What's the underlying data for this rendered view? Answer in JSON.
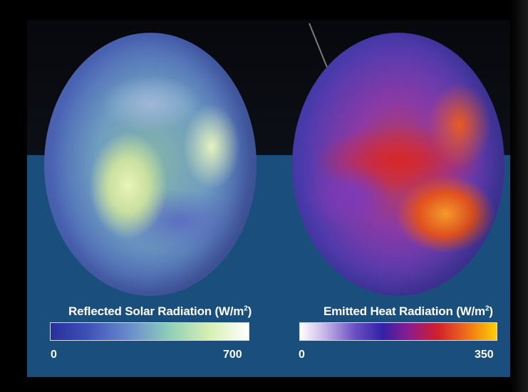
{
  "panels": [
    {
      "legend_title": "Reflected Solar Radiation (W/m",
      "legend_unit_exp": "2",
      "legend_title_close": ")",
      "scale_min": "0",
      "scale_max": "700"
    },
    {
      "legend_title": "Emitted Heat Radiation (W/m",
      "legend_unit_exp": "2",
      "legend_title_close": ")",
      "scale_min": "0",
      "scale_max": "350"
    }
  ],
  "colors": {
    "background_top": "#07080c",
    "background_bottom": "#1a4e7d",
    "text": "#ffffff"
  }
}
